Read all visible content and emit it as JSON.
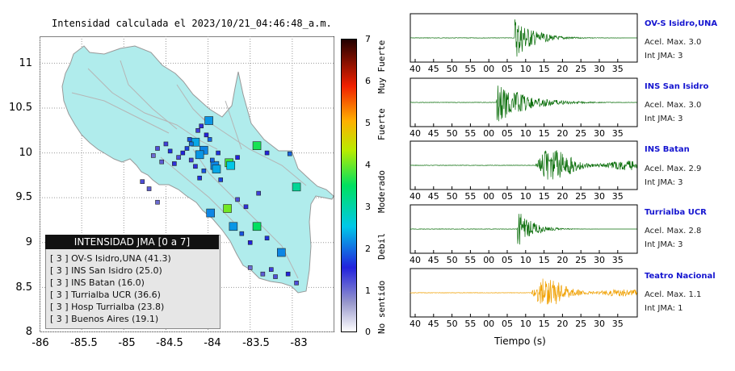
{
  "chart_data": [
    {
      "type": "scatter",
      "title": "Intensidad calculada el 2023/10/21_04:46:48_a.m.",
      "xlim": [
        -86,
        -82.5
      ],
      "ylim": [
        8,
        11.3
      ],
      "x_ticks": [
        "-86",
        "-85.5",
        "-85",
        "-84.5",
        "-84",
        "-83.5",
        "-83"
      ],
      "y_ticks": [
        "8",
        "8.5",
        "9",
        "9.5",
        "10",
        "10.5",
        "11"
      ],
      "grid": true,
      "colorbar": {
        "range": [
          0,
          7
        ],
        "ticks": [
          "0",
          "1",
          "2",
          "3",
          "4",
          "5",
          "6",
          "7"
        ],
        "labels": [
          "No sentido",
          "Debil",
          "Moderado",
          "Fuerte",
          "Muy Fuerte"
        ]
      },
      "points": [
        {
          "lon": -83.99,
          "lat": 10.36,
          "jma": 2.2,
          "big": true
        },
        {
          "lon": -84.15,
          "lat": 10.12,
          "jma": 2.3,
          "big": true
        },
        {
          "lon": -84.05,
          "lat": 10.03,
          "jma": 2.1,
          "big": true
        },
        {
          "lon": -84.1,
          "lat": 9.98,
          "jma": 2.2,
          "big": true
        },
        {
          "lon": -83.92,
          "lat": 9.86,
          "jma": 2.1,
          "big": true
        },
        {
          "lon": -83.9,
          "lat": 9.82,
          "jma": 2.3,
          "big": true
        },
        {
          "lon": -83.75,
          "lat": 9.89,
          "jma": 3.8,
          "big": true
        },
        {
          "lon": -83.73,
          "lat": 9.86,
          "jma": 2.5,
          "big": true
        },
        {
          "lon": -83.42,
          "lat": 10.08,
          "jma": 3.6,
          "big": true
        },
        {
          "lon": -82.95,
          "lat": 9.62,
          "jma": 3.1,
          "big": true
        },
        {
          "lon": -83.77,
          "lat": 9.38,
          "jma": 4.0,
          "big": true
        },
        {
          "lon": -83.97,
          "lat": 9.33,
          "jma": 2.1,
          "big": true
        },
        {
          "lon": -83.42,
          "lat": 9.18,
          "jma": 3.5,
          "big": true
        },
        {
          "lon": -83.7,
          "lat": 9.18,
          "jma": 2.2,
          "big": true
        },
        {
          "lon": -83.13,
          "lat": 8.89,
          "jma": 2.1,
          "big": true
        },
        {
          "lon": -84.3,
          "lat": 10.0,
          "jma": 1.5,
          "big": false
        },
        {
          "lon": -84.2,
          "lat": 9.92,
          "jma": 1.3,
          "big": false
        },
        {
          "lon": -84.25,
          "lat": 10.05,
          "jma": 1.7,
          "big": false
        },
        {
          "lon": -84.35,
          "lat": 9.95,
          "jma": 1.2,
          "big": false
        },
        {
          "lon": -84.45,
          "lat": 10.02,
          "jma": 1.6,
          "big": false
        },
        {
          "lon": -84.15,
          "lat": 9.85,
          "jma": 1.4,
          "big": false
        },
        {
          "lon": -84.05,
          "lat": 9.8,
          "jma": 1.8,
          "big": false
        },
        {
          "lon": -84.02,
          "lat": 10.2,
          "jma": 1.5,
          "big": false
        },
        {
          "lon": -84.12,
          "lat": 10.25,
          "jma": 1.3,
          "big": false
        },
        {
          "lon": -83.98,
          "lat": 10.15,
          "jma": 1.9,
          "big": false
        },
        {
          "lon": -83.88,
          "lat": 10.0,
          "jma": 1.6,
          "big": false
        },
        {
          "lon": -83.65,
          "lat": 9.95,
          "jma": 1.5,
          "big": false
        },
        {
          "lon": -84.55,
          "lat": 9.9,
          "jma": 1.1,
          "big": false
        },
        {
          "lon": -84.6,
          "lat": 10.05,
          "jma": 1.2,
          "big": false
        },
        {
          "lon": -84.65,
          "lat": 9.97,
          "jma": 1.0,
          "big": false
        },
        {
          "lon": -84.4,
          "lat": 9.88,
          "jma": 1.4,
          "big": false
        },
        {
          "lon": -84.5,
          "lat": 10.1,
          "jma": 1.3,
          "big": false
        },
        {
          "lon": -84.22,
          "lat": 10.15,
          "jma": 1.8,
          "big": false
        },
        {
          "lon": -84.7,
          "lat": 9.6,
          "jma": 1.1,
          "big": false
        },
        {
          "lon": -84.6,
          "lat": 9.45,
          "jma": 1.0,
          "big": false
        },
        {
          "lon": -84.78,
          "lat": 9.68,
          "jma": 1.2,
          "big": false
        },
        {
          "lon": -84.1,
          "lat": 9.72,
          "jma": 1.6,
          "big": false
        },
        {
          "lon": -83.85,
          "lat": 9.7,
          "jma": 1.7,
          "big": false
        },
        {
          "lon": -83.3,
          "lat": 10.0,
          "jma": 1.5,
          "big": false
        },
        {
          "lon": -83.03,
          "lat": 9.99,
          "jma": 1.9,
          "big": false
        },
        {
          "lon": -83.55,
          "lat": 9.4,
          "jma": 1.4,
          "big": false
        },
        {
          "lon": -83.4,
          "lat": 9.55,
          "jma": 1.3,
          "big": false
        },
        {
          "lon": -83.6,
          "lat": 9.1,
          "jma": 1.8,
          "big": false
        },
        {
          "lon": -83.5,
          "lat": 9.0,
          "jma": 1.5,
          "big": false
        },
        {
          "lon": -83.3,
          "lat": 9.05,
          "jma": 1.6,
          "big": false
        },
        {
          "lon": -83.35,
          "lat": 8.65,
          "jma": 1.1,
          "big": false
        },
        {
          "lon": -83.25,
          "lat": 8.7,
          "jma": 1.3,
          "big": false
        },
        {
          "lon": -83.5,
          "lat": 8.72,
          "jma": 1.0,
          "big": false
        },
        {
          "lon": -83.2,
          "lat": 8.62,
          "jma": 1.2,
          "big": false
        },
        {
          "lon": -83.05,
          "lat": 8.65,
          "jma": 1.5,
          "big": false
        },
        {
          "lon": -82.95,
          "lat": 8.55,
          "jma": 1.2,
          "big": false
        },
        {
          "lon": -83.65,
          "lat": 9.48,
          "jma": 1.2,
          "big": false
        },
        {
          "lon": -84.2,
          "lat": 10.1,
          "jma": 2.0,
          "big": false
        },
        {
          "lon": -83.95,
          "lat": 9.92,
          "jma": 1.9,
          "big": false
        },
        {
          "lon": -84.08,
          "lat": 10.3,
          "jma": 1.4,
          "big": false
        }
      ]
    },
    {
      "type": "line",
      "xlabel": "Tiempo (s)",
      "x_ticks": [
        "40",
        "45",
        "50",
        "55",
        "00",
        "05",
        "10",
        "15",
        "20",
        "25",
        "30",
        "35"
      ],
      "series": [
        {
          "name": "OV-S Isidro,UNA",
          "acel_label": "Acel. Max. 3.0",
          "jma_label": "Int JMA: 3",
          "color": "#0a6e0a",
          "onset": 0.46,
          "amp": 1.0,
          "decay": 0.08
        },
        {
          "name": "INS San Isidro",
          "acel_label": "Acel. Max. 3.0",
          "jma_label": "Int JMA: 3",
          "color": "#0a6e0a",
          "onset": 0.38,
          "amp": 1.0,
          "decay": 0.12
        },
        {
          "name": "INS Batan",
          "acel_label": "Acel. Max. 2.9",
          "jma_label": "Int JMA: 3",
          "color": "#0a6e0a",
          "onset": 0.55,
          "amp": 0.9,
          "decay": 0.3
        },
        {
          "name": "Turrialba UCR",
          "acel_label": "Acel. Max. 2.8",
          "jma_label": "Int JMA: 3",
          "color": "#0a6e0a",
          "onset": 0.47,
          "amp": 1.0,
          "decay": 0.06
        },
        {
          "name": "Teatro Nacional",
          "acel_label": "Acel. Max. 1.1",
          "jma_label": "Int JMA: 1",
          "color": "#f0a000",
          "onset": 0.53,
          "amp": 0.85,
          "decay": 0.25
        }
      ]
    }
  ],
  "legend": {
    "title": "INTENSIDAD JMA [0 a 7]",
    "rows": [
      "[ 3 ]  OV-S Isidro,UNA (41.3)",
      "[ 3 ]  INS San Isidro (25.0)",
      "[ 3 ]  INS Batan (16.0)",
      "[ 3 ]  Turrialba UCR (36.6)",
      "[ 3 ]  Hosp Turrialba (23.8)",
      "[ 3 ]  Buenos Aires (19.1)"
    ]
  },
  "colors": {
    "land": "#b0ecec",
    "border": "#999999",
    "trace_green": "#0a6e0a",
    "trace_orange": "#f0a000",
    "station_blue": "#1515d0"
  }
}
